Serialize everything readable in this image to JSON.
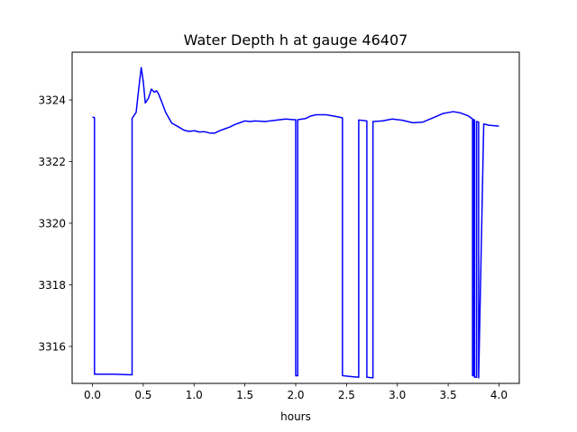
{
  "chart_data": {
    "type": "line",
    "title": "Water Depth h at gauge 46407",
    "xlabel": "hours",
    "ylabel": "",
    "xlim": [
      -0.2,
      4.2
    ],
    "ylim": [
      3314.8,
      3325.55
    ],
    "grid": false,
    "xticks": [
      0.0,
      0.5,
      1.0,
      1.5,
      2.0,
      2.5,
      3.0,
      3.5,
      4.0
    ],
    "xtick_labels": [
      "0.0",
      "0.5",
      "1.0",
      "1.5",
      "2.0",
      "2.5",
      "3.0",
      "3.5",
      "4.0"
    ],
    "yticks": [
      3316,
      3318,
      3320,
      3322,
      3324
    ],
    "ytick_labels": [
      "3316",
      "3318",
      "3320",
      "3322",
      "3324"
    ],
    "series": [
      {
        "color": "#0000ff",
        "x": [
          0.0,
          0.02,
          0.02,
          0.2,
          0.35,
          0.39,
          0.39,
          0.43,
          0.46,
          0.48,
          0.5,
          0.52,
          0.55,
          0.58,
          0.61,
          0.63,
          0.65,
          0.68,
          0.72,
          0.78,
          0.85,
          0.9,
          0.95,
          1.0,
          1.05,
          1.1,
          1.15,
          1.2,
          1.25,
          1.3,
          1.35,
          1.4,
          1.45,
          1.5,
          1.55,
          1.6,
          1.7,
          1.8,
          1.9,
          1.98,
          2.0,
          2.0,
          2.02,
          2.02,
          2.1,
          2.15,
          2.2,
          2.3,
          2.4,
          2.46,
          2.46,
          2.55,
          2.62,
          2.62,
          2.7,
          2.7,
          2.76,
          2.76,
          2.85,
          2.95,
          3.05,
          3.15,
          3.25,
          3.35,
          3.45,
          3.55,
          3.62,
          3.7,
          3.74,
          3.74,
          3.75,
          3.75,
          3.76,
          3.76,
          3.78,
          3.78,
          3.8,
          3.8,
          3.85,
          3.9,
          4.0
        ],
        "y": [
          3323.45,
          3323.42,
          3315.1,
          3315.1,
          3315.08,
          3315.08,
          3323.4,
          3323.6,
          3324.5,
          3325.05,
          3324.6,
          3323.9,
          3324.05,
          3324.35,
          3324.25,
          3324.3,
          3324.2,
          3323.95,
          3323.6,
          3323.25,
          3323.12,
          3323.02,
          3322.98,
          3323.0,
          3322.96,
          3322.97,
          3322.93,
          3322.92,
          3323.0,
          3323.06,
          3323.12,
          3323.2,
          3323.26,
          3323.32,
          3323.3,
          3323.32,
          3323.3,
          3323.34,
          3323.38,
          3323.36,
          3323.36,
          3315.05,
          3315.05,
          3323.36,
          3323.4,
          3323.48,
          3323.52,
          3323.52,
          3323.46,
          3323.42,
          3315.05,
          3315.02,
          3315.0,
          3323.35,
          3323.32,
          3315.0,
          3314.98,
          3323.3,
          3323.32,
          3323.38,
          3323.34,
          3323.26,
          3323.28,
          3323.42,
          3323.56,
          3323.62,
          3323.58,
          3323.48,
          3323.38,
          3315.05,
          3315.05,
          3323.36,
          3323.35,
          3315.0,
          3315.0,
          3323.3,
          3323.28,
          3314.98,
          3323.22,
          3323.18,
          3323.15
        ]
      }
    ]
  }
}
